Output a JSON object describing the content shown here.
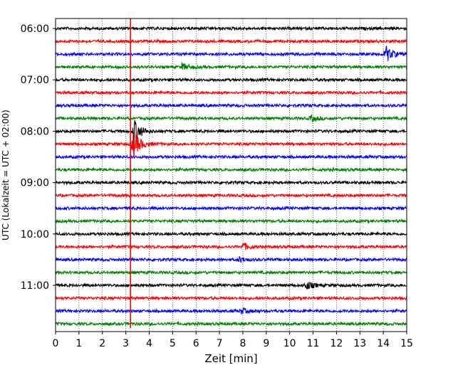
{
  "chart_data": {
    "type": "line",
    "title": "",
    "xlabel": "Zeit  [min]",
    "ylabel": "UTC (Lokalzeit = UTC + 02:00)",
    "xlim": [
      0,
      15
    ],
    "x_ticks": [
      0,
      1,
      2,
      3,
      4,
      5,
      6,
      7,
      8,
      9,
      10,
      11,
      12,
      13,
      14,
      15
    ],
    "y_tick_labels": [
      "06:00",
      "07:00",
      "08:00",
      "09:00",
      "10:00",
      "11:00"
    ],
    "trace_interval_min": 15,
    "start_time": "06:00",
    "trace_count": 24,
    "trace_colors": [
      "#000000",
      "#ff0000",
      "#0000ff",
      "#008000"
    ],
    "grid": "vertical dotted",
    "event_marker": {
      "x_min": 3.2,
      "color": "#ff0000"
    },
    "event_bursts": [
      {
        "trace": 2,
        "x_min": 14.1,
        "amp": 12
      },
      {
        "trace": 3,
        "x_min": 5.4,
        "amp": 5
      },
      {
        "trace": 7,
        "x_min": 10.9,
        "amp": 4
      },
      {
        "trace": 8,
        "x_min": 3.35,
        "amp": 18
      },
      {
        "trace": 9,
        "x_min": 3.3,
        "amp": 22
      },
      {
        "trace": 17,
        "x_min": 8.0,
        "amp": 5
      },
      {
        "trace": 18,
        "x_min": 7.8,
        "amp": 4
      },
      {
        "trace": 20,
        "x_min": 10.7,
        "amp": 6
      },
      {
        "trace": 22,
        "x_min": 7.9,
        "amp": 4
      }
    ]
  }
}
